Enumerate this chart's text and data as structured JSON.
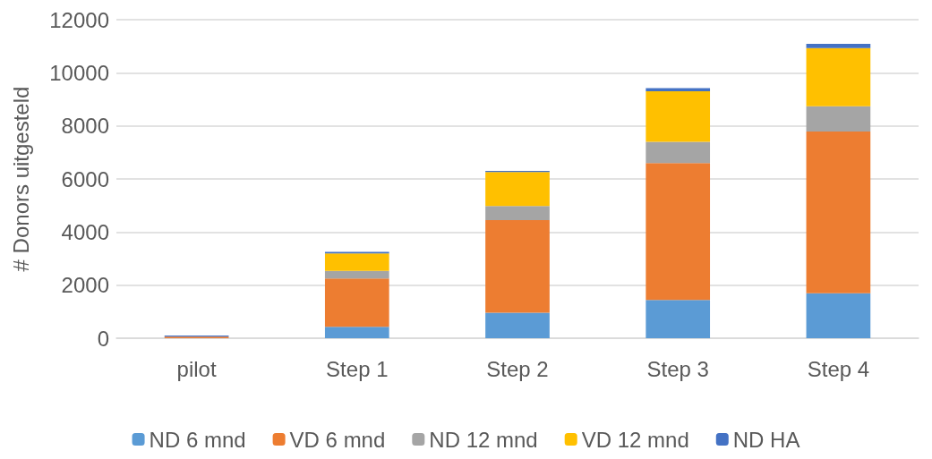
{
  "chart_data": {
    "type": "bar",
    "stacked": true,
    "ylabel": "# Donors uitgesteld",
    "categories": [
      "pilot",
      "Step 1",
      "Step 2",
      "Step 3",
      "Step 4"
    ],
    "series": [
      {
        "name": "ND 6 mnd",
        "color": "#5b9bd5",
        "values": [
          0,
          430,
          960,
          1440,
          1690
        ]
      },
      {
        "name": "VD 6 mnd",
        "color": "#ed7d31",
        "values": [
          60,
          1820,
          3490,
          5160,
          6100
        ]
      },
      {
        "name": "ND 12 mnd",
        "color": "#a5a5a5",
        "values": [
          0,
          290,
          530,
          800,
          950
        ]
      },
      {
        "name": "VD 12 mnd",
        "color": "#ffc000",
        "values": [
          0,
          650,
          1280,
          1900,
          2190
        ]
      },
      {
        "name": "ND HA",
        "color": "#4472c4",
        "values": [
          40,
          60,
          40,
          120,
          160
        ]
      }
    ],
    "ylim": [
      0,
      12000
    ],
    "yticks": [
      0,
      2000,
      4000,
      6000,
      8000,
      10000,
      12000
    ],
    "grid": "y",
    "legend": "bottom"
  }
}
